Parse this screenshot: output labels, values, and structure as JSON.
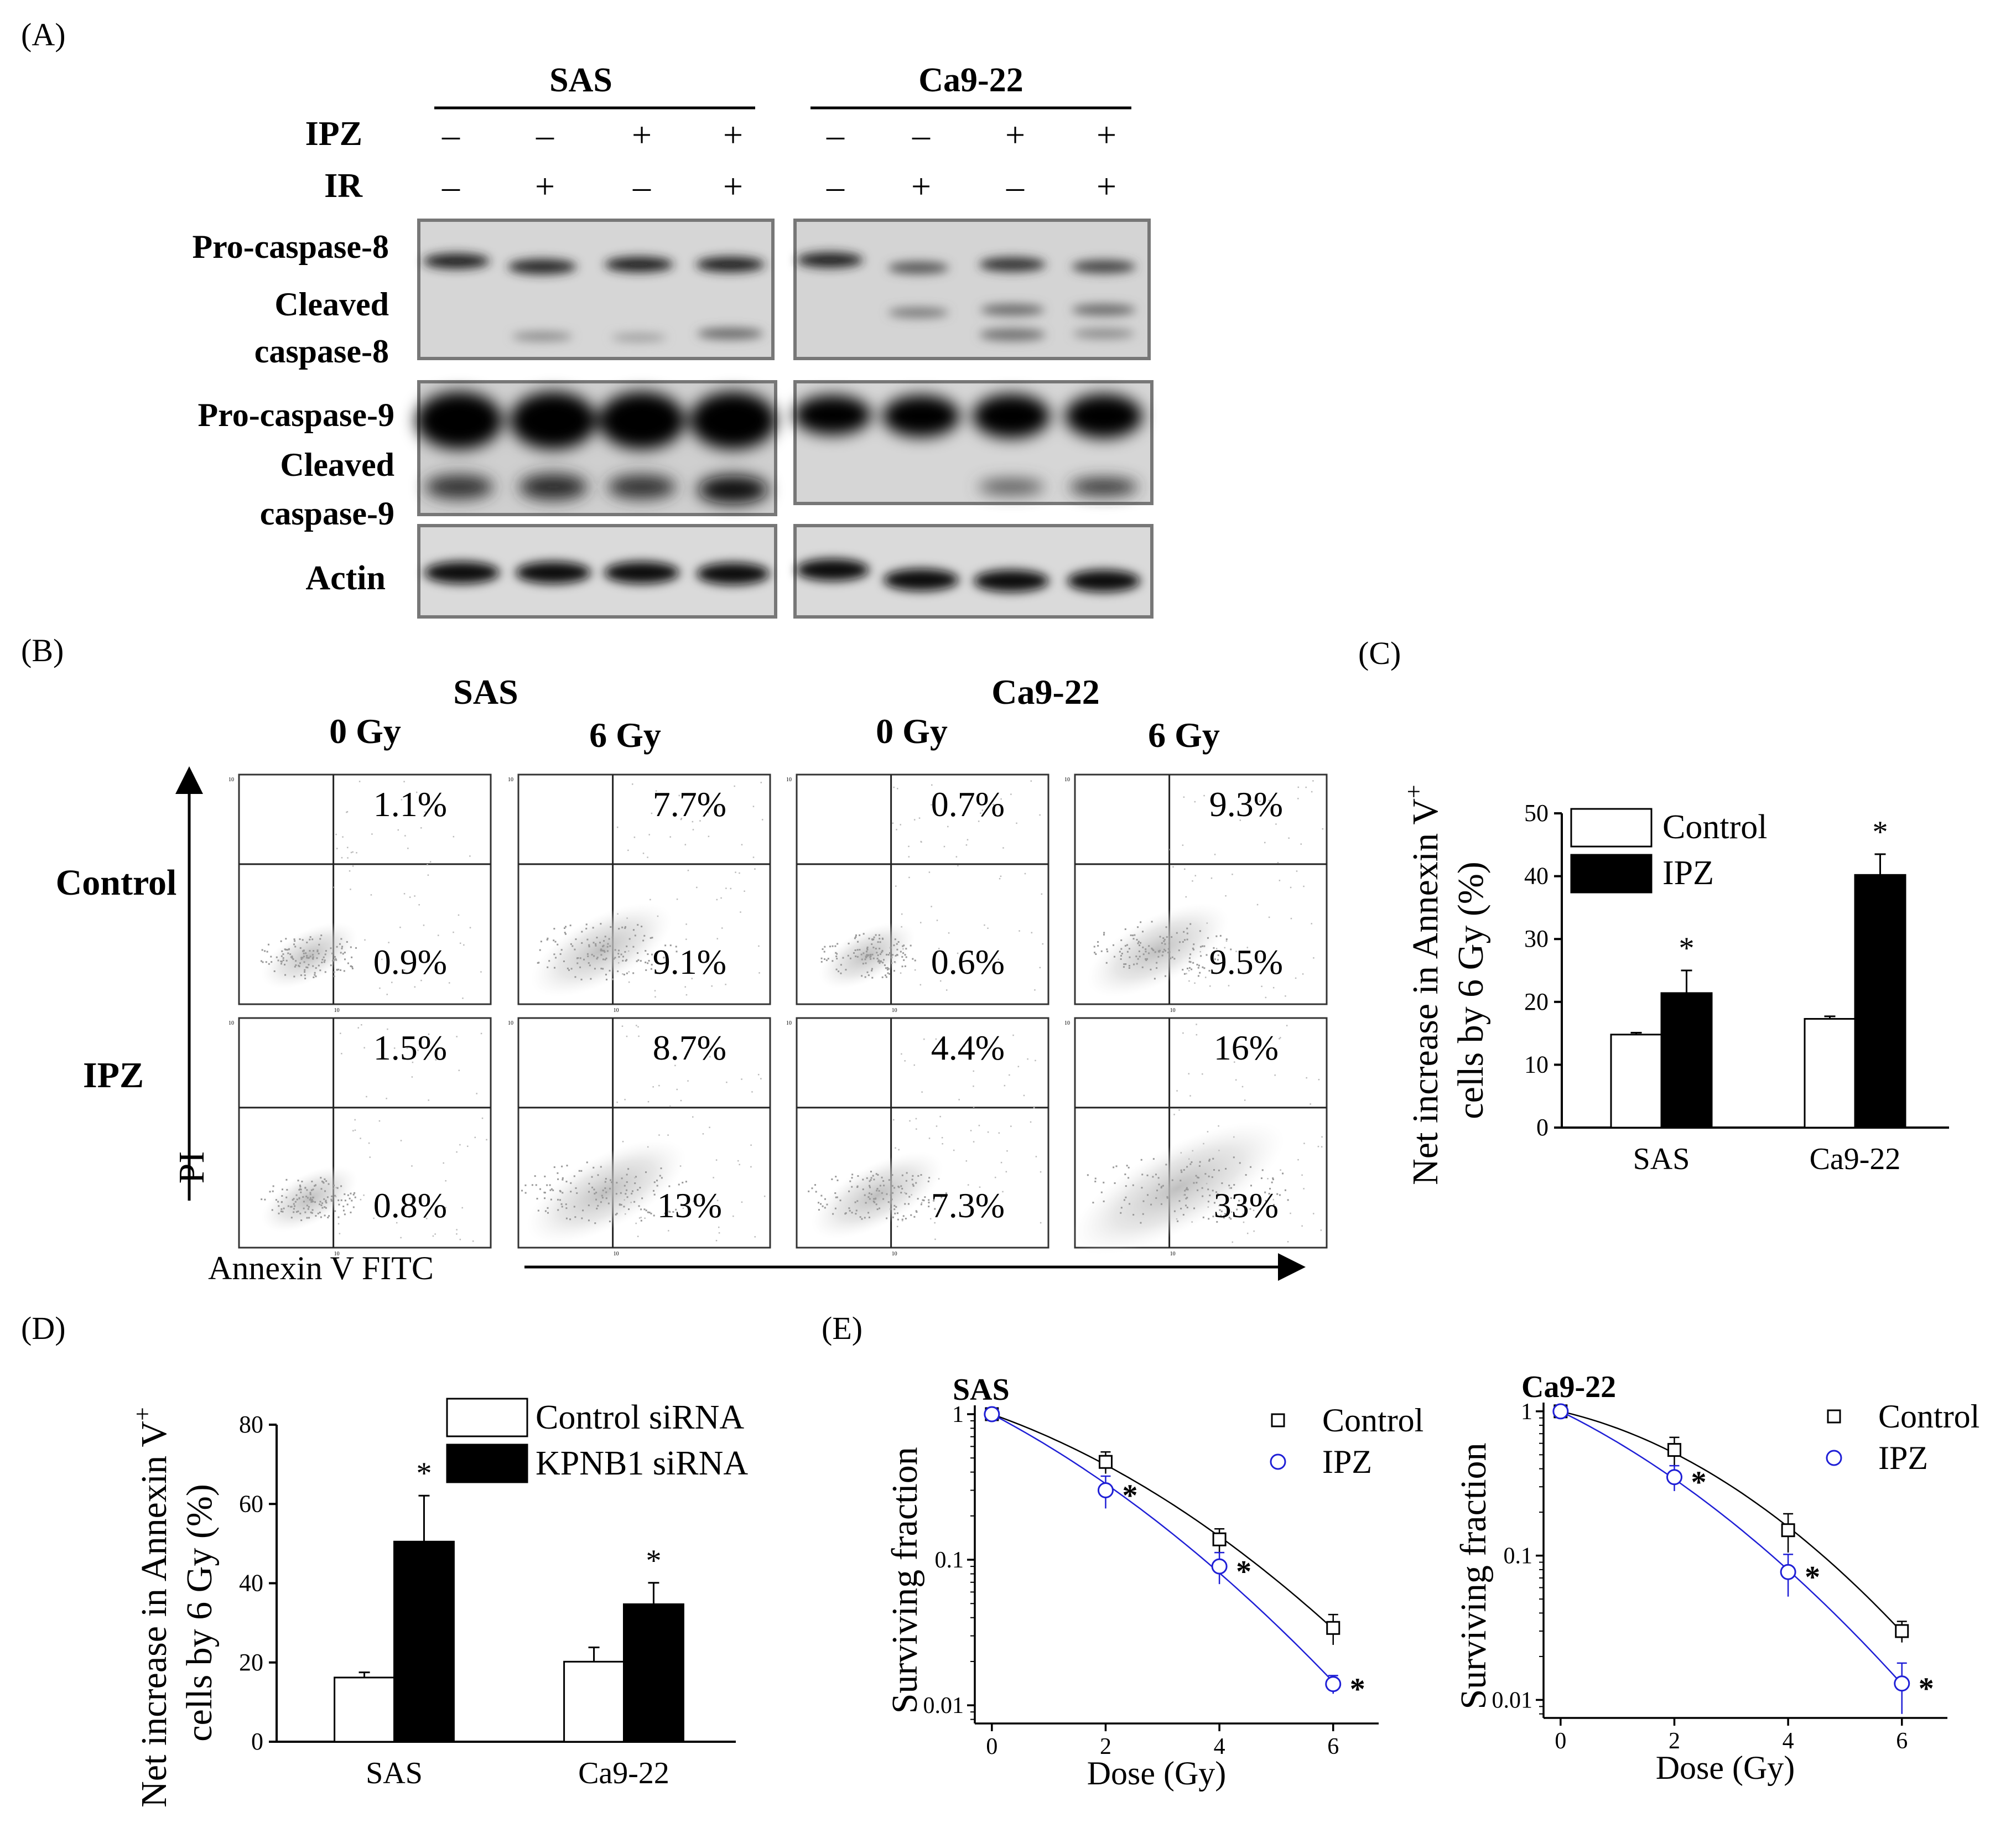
{
  "panel_labels": {
    "A": "(A)",
    "B": "(B)",
    "C": "(C)",
    "D": "(D)",
    "E": "(E)"
  },
  "panel_a": {
    "cell_lines": [
      "SAS",
      "Ca9-22"
    ],
    "treatment_rows": [
      {
        "label": "IPZ",
        "signs": [
          "–",
          "–",
          "+",
          "+",
          "–",
          "–",
          "+",
          "+"
        ]
      },
      {
        "label": "IR",
        "signs": [
          "–",
          "+",
          "–",
          "+",
          "–",
          "+",
          "–",
          "+"
        ]
      }
    ],
    "blot_labels": {
      "pro_casp8": "Pro-caspase-8",
      "cleaved_casp8_l1": "Cleaved",
      "cleaved_casp8_l2": "caspase-8",
      "pro_casp9": "Pro-caspase-9",
      "cleaved_casp9_l1": "Cleaved",
      "cleaved_casp9_l2": "caspase-9",
      "actin": "Actin"
    }
  },
  "panel_b": {
    "cell_lines": [
      "SAS",
      "Ca9-22"
    ],
    "doses": [
      "0 Gy",
      "6 Gy",
      "0 Gy",
      "6 Gy"
    ],
    "row_labels": [
      "Control",
      "IPZ"
    ],
    "y_axis": "PI",
    "x_axis": "Annexin V FITC",
    "quadrant_values": {
      "control_upper": [
        "1.1%",
        "7.7%",
        "0.7%",
        "9.3%"
      ],
      "control_lower": [
        "0.9%",
        "9.1%",
        "0.6%",
        "9.5%"
      ],
      "ipz_upper": [
        "1.5%",
        "8.7%",
        "4.4%",
        "16%"
      ],
      "ipz_lower": [
        "0.8%",
        "13%",
        "7.3%",
        "33%"
      ]
    }
  },
  "chart_data": [
    {
      "id": "C",
      "type": "bar",
      "categories": [
        "SAS",
        "Ca9-22"
      ],
      "series": [
        {
          "name": "Control",
          "values": [
            14.8,
            17.3
          ],
          "errors": [
            0.3,
            0.4
          ],
          "color": "#ffffff"
        },
        {
          "name": "IPZ",
          "values": [
            21.4,
            40.2
          ],
          "errors": [
            3.6,
            3.3
          ],
          "color": "#000000"
        }
      ],
      "ylabel_line1": "Net increase  in Annexin V",
      "ylabel_sup": "+",
      "ylabel_line2": "cells by 6 Gy (%)",
      "yticks": [
        0,
        10,
        20,
        30,
        40,
        50
      ],
      "ylim": [
        0,
        50
      ],
      "significance": "*"
    },
    {
      "id": "D",
      "type": "bar",
      "categories": [
        "SAS",
        "Ca9-22"
      ],
      "series": [
        {
          "name": "Control siRNA",
          "values": [
            16.2,
            20.2
          ],
          "errors": [
            1.3,
            3.6
          ],
          "color": "#ffffff"
        },
        {
          "name": "KPNB1 siRNA",
          "values": [
            50.5,
            34.7
          ],
          "errors": [
            11.6,
            5.4
          ],
          "color": "#000000"
        }
      ],
      "ylabel_line1": "Net increase  in Annexin V",
      "ylabel_sup": "+",
      "ylabel_line2": "cells by 6 Gy (%)",
      "yticks": [
        0,
        20,
        40,
        60,
        80
      ],
      "ylim": [
        0,
        80
      ],
      "significance": "*"
    },
    {
      "id": "E1",
      "type": "scatter",
      "title": "SAS",
      "xlabel": "Dose (Gy)",
      "ylabel": "Surviving  fraction",
      "yscale": "log",
      "ylim": [
        0.0075,
        1.15
      ],
      "xlim": [
        -0.3,
        6.8
      ],
      "xticks": [
        0,
        2,
        4,
        6
      ],
      "ytick_labels": [
        "1",
        "0.1",
        "0.01"
      ],
      "x": [
        0,
        2,
        4,
        6
      ],
      "series": [
        {
          "name": "Control",
          "values": [
            1.0,
            0.47,
            0.138,
            0.034
          ],
          "errors": [
            0.0,
            0.08,
            0.025,
            0.008
          ],
          "color": "#000000",
          "marker": "square",
          "significant": [
            false,
            false,
            false,
            false
          ]
        },
        {
          "name": "IPZ",
          "values": [
            1.0,
            0.3,
            0.09,
            0.014
          ],
          "errors": [
            0.0,
            0.075,
            0.022,
            0.002
          ],
          "color": "#1f1fd6",
          "marker": "circle",
          "significant": [
            false,
            true,
            true,
            true
          ]
        }
      ],
      "significance": "*"
    },
    {
      "id": "E2",
      "type": "scatter",
      "title": "Ca9-22",
      "xlabel": "Dose (Gy)",
      "ylabel": "Surviving  fraction",
      "yscale": "log",
      "ylim": [
        0.0075,
        1.15
      ],
      "xlim": [
        -0.3,
        6.8
      ],
      "xticks": [
        0,
        2,
        4,
        6
      ],
      "ytick_labels": [
        "1",
        "0.1",
        "0.01"
      ],
      "x": [
        0,
        2,
        4,
        6
      ],
      "series": [
        {
          "name": "Control",
          "values": [
            1.0,
            0.54,
            0.15,
            0.03
          ],
          "errors": [
            0.0,
            0.12,
            0.045,
            0.005
          ],
          "color": "#000000",
          "marker": "square",
          "significant": [
            false,
            false,
            false,
            false
          ]
        },
        {
          "name": "IPZ",
          "values": [
            1.0,
            0.35,
            0.077,
            0.013
          ],
          "errors": [
            0.0,
            0.07,
            0.025,
            0.005
          ],
          "color": "#1f1fd6",
          "marker": "circle",
          "significant": [
            false,
            true,
            true,
            true
          ]
        }
      ],
      "significance": "*"
    }
  ]
}
